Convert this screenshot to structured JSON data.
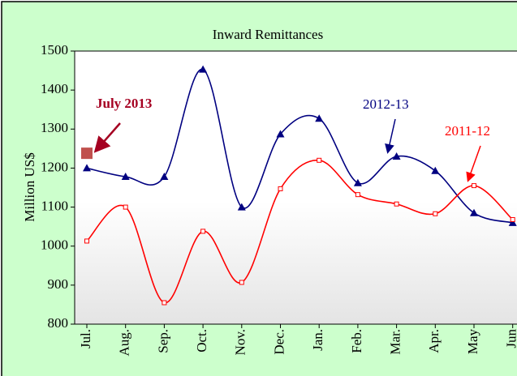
{
  "chart_data": {
    "type": "line",
    "title": "Inward Remittances",
    "y_label": "Million US$",
    "categories": [
      "Jul.",
      "Aug.",
      "Sep.",
      "Oct.",
      "Nov.",
      "Dec.",
      "Jan.",
      "Feb.",
      "Mar.",
      "Apr.",
      "May",
      "Jun"
    ],
    "series": [
      {
        "name": "2012-13",
        "color": "#000080",
        "marker": "triangle",
        "values": [
          1200,
          1178,
          1178,
          1453,
          1100,
          1287,
          1327,
          1162,
          1230,
          1193,
          1085,
          1060
        ]
      },
      {
        "name": "2011-12",
        "color": "#ff0000",
        "marker": "square-open",
        "values": [
          1013,
          1100,
          855,
          1038,
          907,
          1147,
          1220,
          1132,
          1108,
          1083,
          1155,
          1068
        ]
      },
      {
        "name": "July 2013",
        "color": "#c0504d",
        "marker": "square",
        "values": [
          1238,
          null,
          null,
          null,
          null,
          null,
          null,
          null,
          null,
          null,
          null,
          null
        ]
      }
    ],
    "ylim": [
      800,
      1500
    ],
    "yticks": [
      800,
      900,
      1000,
      1100,
      1200,
      1300,
      1400,
      1500
    ],
    "grid": false
  }
}
